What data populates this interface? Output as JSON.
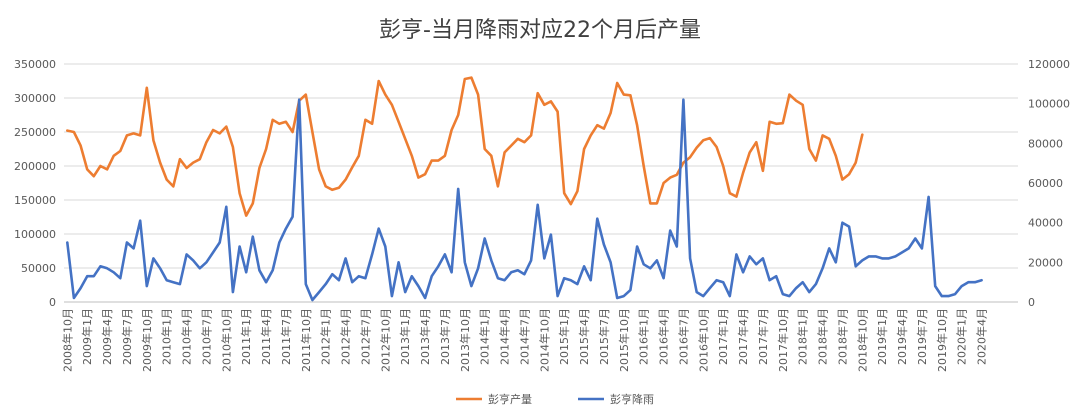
{
  "chart_data": {
    "type": "line",
    "title": "彭亨-当月降雨对应22个月后产量",
    "x_tick_labels": [
      "2008年10月",
      "2009年1月",
      "2009年4月",
      "2009年7月",
      "2009年10月",
      "2010年1月",
      "2010年4月",
      "2010年7月",
      "2010年10月",
      "2011年1月",
      "2011年4月",
      "2011年7月",
      "2011年10月",
      "2012年1月",
      "2012年4月",
      "2012年7月",
      "2012年10月",
      "2013年1月",
      "2013年4月",
      "2013年7月",
      "2013年10月",
      "2014年1月",
      "2014年4月",
      "2014年7月",
      "2014年10月",
      "2015年1月",
      "2015年4月",
      "2015年7月",
      "2015年10月",
      "2016年1月",
      "2016年4月",
      "2016年7月",
      "2016年10月",
      "2017年1月",
      "2017年4月",
      "2017年7月",
      "2017年10月",
      "2018年1月",
      "2018年4月",
      "2018年7月",
      "2018年10月",
      "2019年1月",
      "2019年4月",
      "2019年7月",
      "2019年10月",
      "2020年1月",
      "2020年4月"
    ],
    "y_left": {
      "min": 0,
      "max": 350000,
      "ticks": [
        "0",
        "50000",
        "100000",
        "150000",
        "200000",
        "250000",
        "300000",
        "350000"
      ]
    },
    "y_right": {
      "min": 0,
      "max": 120000,
      "ticks": [
        "0",
        "20000",
        "40000",
        "60000",
        "80000",
        "100000",
        "120000"
      ]
    },
    "gridlines": true,
    "legend_position": "bottom",
    "series": [
      {
        "name": "彭亨产量",
        "axis": "left",
        "color": "#ED7D31",
        "values": [
          252000,
          250000,
          230000,
          195000,
          185000,
          200000,
          195000,
          215000,
          222000,
          245000,
          248000,
          245000,
          315000,
          238000,
          205000,
          180000,
          170000,
          210000,
          197000,
          205000,
          210000,
          235000,
          253000,
          248000,
          258000,
          228000,
          160000,
          127000,
          145000,
          197000,
          225000,
          268000,
          262000,
          265000,
          250000,
          296000,
          305000,
          250000,
          195000,
          170000,
          165000,
          168000,
          180000,
          198000,
          215000,
          268000,
          262000,
          325000,
          305000,
          290000,
          265000,
          240000,
          215000,
          183000,
          188000,
          208000,
          208000,
          215000,
          253000,
          275000,
          328000,
          330000,
          305000,
          225000,
          215000,
          170000,
          220000,
          230000,
          240000,
          235000,
          245000,
          307000,
          290000,
          295000,
          280000,
          160000,
          144000,
          163000,
          225000,
          245000,
          260000,
          255000,
          278000,
          322000,
          305000,
          304000,
          260000,
          200000,
          145000,
          145000,
          175000,
          183000,
          187000,
          205000,
          213000,
          227000,
          238000,
          241000,
          228000,
          200000,
          160000,
          155000,
          190000,
          220000,
          235000,
          193000,
          265000,
          262000,
          263000,
          305000,
          296000,
          290000,
          225000,
          208000,
          245000,
          240000,
          215000,
          180000,
          188000,
          205000,
          246000
        ]
      },
      {
        "name": "彭亨降雨",
        "axis": "right",
        "color": "#4472C4",
        "values": [
          30000,
          2000,
          7000,
          13000,
          13000,
          18000,
          17000,
          15000,
          12000,
          30000,
          27000,
          41000,
          8000,
          22000,
          17000,
          11000,
          10000,
          9000,
          24000,
          21000,
          17000,
          20000,
          25000,
          30000,
          48000,
          5000,
          28000,
          15000,
          33000,
          16000,
          10000,
          16000,
          30000,
          37000,
          43000,
          102000,
          9000,
          1000,
          5000,
          9000,
          14000,
          11000,
          22000,
          10000,
          13000,
          12000,
          24000,
          37000,
          28000,
          3000,
          20000,
          5000,
          13000,
          8000,
          2000,
          13000,
          18000,
          24000,
          15000,
          57000,
          20000,
          8000,
          17000,
          32000,
          21000,
          12000,
          11000,
          15000,
          16000,
          14000,
          21000,
          49000,
          22000,
          34000,
          3000,
          12000,
          11000,
          9000,
          18000,
          11000,
          42000,
          29000,
          20000,
          2000,
          3000,
          6000,
          28000,
          19000,
          17000,
          21000,
          12000,
          36000,
          28000,
          102000,
          22000,
          5000,
          3000,
          7000,
          11000,
          10000,
          3000,
          24000,
          15000,
          23000,
          19000,
          22000,
          11000,
          13000,
          4000,
          3000,
          7000,
          10000,
          5000,
          9000,
          17000,
          27000,
          20000,
          40000,
          38000,
          18000,
          21000,
          23000,
          23000,
          22000,
          22000,
          23000,
          25000,
          27000,
          32000,
          27000,
          53000,
          8000,
          3000,
          3000,
          4000,
          8000,
          10000,
          10000,
          11000
        ]
      }
    ]
  }
}
